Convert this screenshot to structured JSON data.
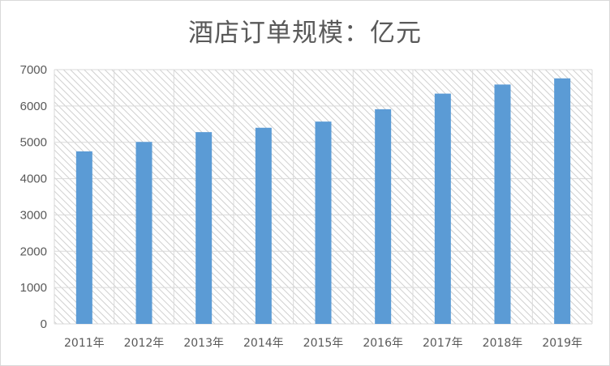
{
  "chart_data": {
    "type": "bar",
    "title": "酒店订单规模：亿元",
    "categories": [
      "2011年",
      "2012年",
      "2013年",
      "2014年",
      "2015年",
      "2016年",
      "2017年",
      "2018年",
      "2019年"
    ],
    "values": [
      4750,
      5010,
      5280,
      5400,
      5570,
      5910,
      6340,
      6590,
      6760
    ],
    "ylim": [
      0,
      7000
    ],
    "yticks": [
      0,
      1000,
      2000,
      3000,
      4000,
      5000,
      6000,
      7000
    ],
    "grid": true,
    "legend": "none",
    "colors": {
      "bar": "#5b9bd5",
      "grid": "#d9d9d9",
      "hatch": "#d0d0d0",
      "text": "#595959"
    }
  }
}
